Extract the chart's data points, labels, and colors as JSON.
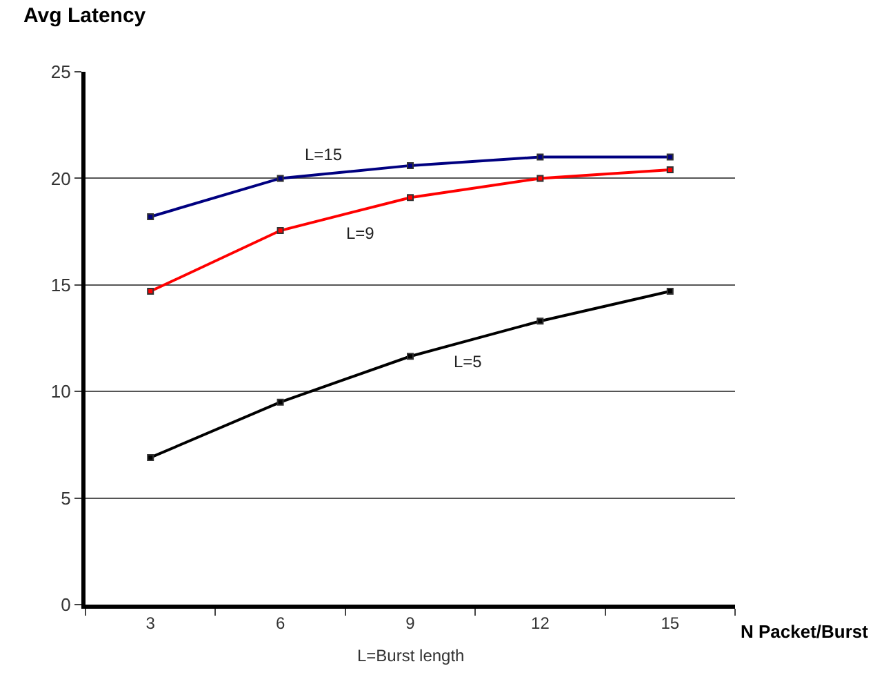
{
  "chart_data": {
    "type": "line",
    "ylabel": "Avg Latency",
    "xlabel": "N Packet/Burst",
    "categories": [
      "3",
      "6",
      "9",
      "12",
      "15"
    ],
    "series": [
      {
        "name": "L=15",
        "color": "#000080",
        "values": [
          18.2,
          20.0,
          20.6,
          21.0,
          21.0
        ]
      },
      {
        "name": "L=9",
        "color": "#ff0000",
        "values": [
          14.7,
          17.55,
          19.1,
          20.0,
          20.4
        ]
      },
      {
        "name": "L=5",
        "color": "#000000",
        "values": [
          6.9,
          9.5,
          11.65,
          13.3,
          14.7
        ]
      }
    ],
    "annotations": [
      "L=Burst length"
    ],
    "ylim": [
      0,
      25
    ],
    "yticks": [
      0,
      5,
      10,
      15,
      20,
      25
    ],
    "grid": "y",
    "legend": false,
    "marker": "square",
    "line_style": "solid"
  }
}
